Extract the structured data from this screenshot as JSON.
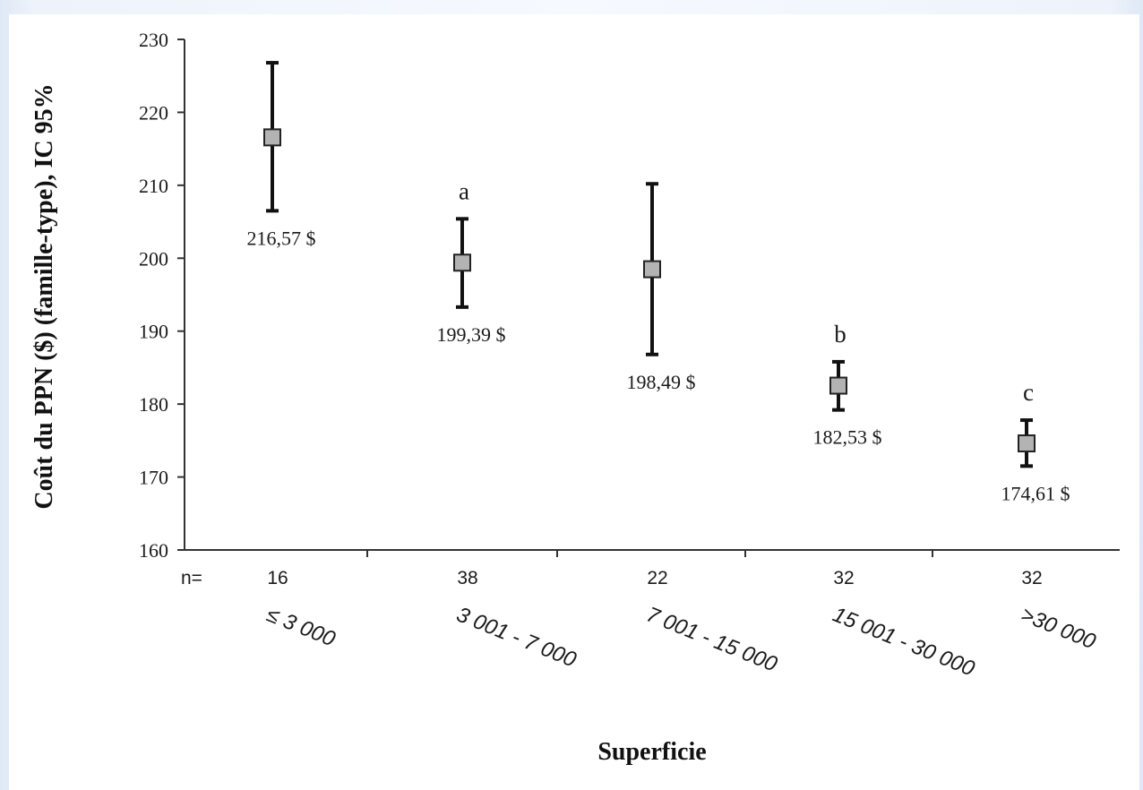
{
  "chart_data": {
    "type": "scatter",
    "ylabel": "Coût du PPN ($) (famille-type), IC 95%",
    "xlabel": "Superficie",
    "ylim": [
      160,
      230
    ],
    "yticks": [
      160,
      170,
      180,
      190,
      200,
      210,
      220,
      230
    ],
    "grid": false,
    "n_prefix": "n=",
    "categories": [
      "≤ 3 000",
      "3 001 - 7 000",
      "7 001 - 15 000",
      "15 001 - 30 000",
      ">30 000"
    ],
    "n": [
      "16",
      "38",
      "22",
      "32",
      "32"
    ],
    "values": [
      216.57,
      199.39,
      198.49,
      182.53,
      174.61
    ],
    "ci_low": [
      206.5,
      193.3,
      186.8,
      179.2,
      171.5
    ],
    "ci_high": [
      226.8,
      205.4,
      210.2,
      185.8,
      177.8
    ],
    "value_labels": [
      "216,57 $",
      "199,39 $",
      "198,49 $",
      "182,53 $",
      "174,61 $"
    ],
    "letters": [
      "",
      "a",
      "",
      "b",
      "c"
    ],
    "marker_color": "#b3b3b3",
    "line_color": "#111111"
  }
}
